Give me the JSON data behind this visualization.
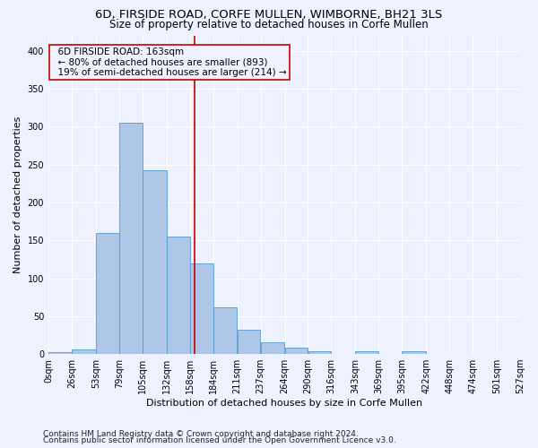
{
  "title_line1": "6D, FIRSIDE ROAD, CORFE MULLEN, WIMBORNE, BH21 3LS",
  "title_line2": "Size of property relative to detached houses in Corfe Mullen",
  "xlabel": "Distribution of detached houses by size in Corfe Mullen",
  "ylabel": "Number of detached properties",
  "footnote1": "Contains HM Land Registry data © Crown copyright and database right 2024.",
  "footnote2": "Contains public sector information licensed under the Open Government Licence v3.0.",
  "annotation_line1": "6D FIRSIDE ROAD: 163sqm",
  "annotation_line2": "← 80% of detached houses are smaller (893)",
  "annotation_line3": "19% of semi-detached houses are larger (214) →",
  "bar_color": "#aec6e8",
  "bar_edge_color": "#5599cc",
  "vline_color": "#cc0000",
  "vline_x": 163,
  "bin_edges": [
    0,
    26,
    53,
    79,
    105,
    132,
    158,
    184,
    211,
    237,
    264,
    290,
    316,
    343,
    369,
    395,
    422,
    448,
    474,
    501,
    527
  ],
  "bar_heights": [
    2,
    6,
    160,
    305,
    243,
    155,
    120,
    62,
    32,
    15,
    8,
    4,
    0,
    4,
    0,
    4,
    0,
    0,
    0,
    0
  ],
  "ylim": [
    0,
    420
  ],
  "yticks": [
    0,
    50,
    100,
    150,
    200,
    250,
    300,
    350,
    400
  ],
  "background_color": "#eef2ff",
  "grid_color": "#ffffff",
  "title_fontsize": 9.5,
  "subtitle_fontsize": 8.5,
  "label_fontsize": 8,
  "tick_fontsize": 7,
  "footnote_fontsize": 6.5,
  "annotation_fontsize": 7.5
}
